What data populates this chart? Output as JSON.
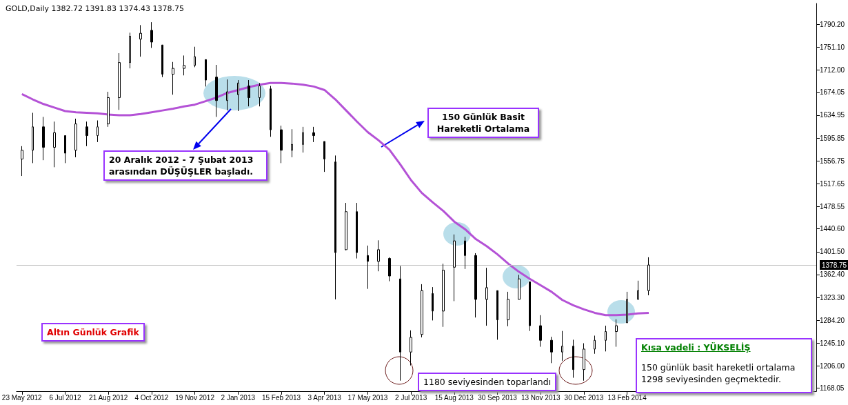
{
  "chart_data": {
    "type": "candlestick",
    "title": "GOLD,Daily  1382.72 1391.83 1374.43 1378.75",
    "color": "#000000",
    "categories": [
      "23 May 2012",
      null,
      null,
      null,
      "6 Jul 2012",
      null,
      null,
      null,
      "21 Aug 2012",
      null,
      null,
      null,
      "4 Oct 2012",
      null,
      null,
      null,
      "19 Nov 2012",
      null,
      null,
      null,
      "2 Jan 2013",
      null,
      null,
      null,
      "15 Feb 2013",
      null,
      null,
      null,
      "3 Apr 2013",
      null,
      null,
      null,
      "17 May 2013",
      null,
      null,
      null,
      "2 Jul 2013",
      null,
      null,
      null,
      "15 Aug 2013",
      null,
      null,
      null,
      "30 Sep 2013",
      null,
      null,
      null,
      "13 Nov 2013",
      null,
      null,
      null,
      "30 Dec 2013",
      null,
      null,
      null,
      "13 Feb 2014",
      null,
      null,
      null,
      null,
      null,
      null,
      null,
      null,
      null,
      null,
      null,
      null,
      null,
      null,
      null,
      null,
      null
    ],
    "ohlc": [
      [
        1560,
        1582,
        1531,
        1575
      ],
      [
        1575,
        1639,
        1553,
        1615
      ],
      [
        1615,
        1632,
        1558,
        1580
      ],
      [
        1580,
        1624,
        1546,
        1605
      ],
      [
        1600,
        1600,
        1553,
        1570
      ],
      [
        1575,
        1629,
        1563,
        1620
      ],
      [
        1615,
        1624,
        1582,
        1600
      ],
      [
        1600,
        1626,
        1589,
        1615
      ],
      [
        1620,
        1675,
        1615,
        1665
      ],
      [
        1665,
        1741,
        1644,
        1725
      ],
      [
        1725,
        1776,
        1715,
        1770
      ],
      [
        1765,
        1789,
        1735,
        1775
      ],
      [
        1780,
        1794,
        1750,
        1760
      ],
      [
        1755,
        1755,
        1700,
        1705
      ],
      [
        1705,
        1726,
        1670,
        1715
      ],
      [
        1715,
        1737,
        1703,
        1720
      ],
      [
        1720,
        1752,
        1717,
        1735
      ],
      [
        1730,
        1730,
        1684,
        1695
      ],
      [
        1700,
        1721,
        1632,
        1660
      ],
      [
        1660,
        1696,
        1643,
        1675
      ],
      [
        1670,
        1695,
        1642,
        1690
      ],
      [
        1685,
        1695,
        1650,
        1665
      ],
      [
        1665,
        1690,
        1650,
        1685
      ],
      [
        1680,
        1685,
        1598,
        1610
      ],
      [
        1610,
        1617,
        1553,
        1575
      ],
      [
        1575,
        1611,
        1563,
        1585
      ],
      [
        1585,
        1615,
        1571,
        1605
      ],
      [
        1605,
        1615,
        1589,
        1600
      ],
      [
        1590,
        1590,
        1538,
        1560
      ],
      [
        1555,
        1566,
        1320,
        1400
      ],
      [
        1405,
        1485,
        1404,
        1470
      ],
      [
        1470,
        1485,
        1390,
        1400
      ],
      [
        1395,
        1412,
        1338,
        1385
      ],
      [
        1385,
        1421,
        1368,
        1405
      ],
      [
        1390,
        1392,
        1351,
        1360
      ],
      [
        1355,
        1377,
        1181,
        1230
      ],
      [
        1230,
        1267,
        1207,
        1255
      ],
      [
        1260,
        1346,
        1255,
        1335
      ],
      [
        1330,
        1341,
        1284,
        1300
      ],
      [
        1300,
        1381,
        1273,
        1370
      ],
      [
        1375,
        1431,
        1317,
        1420
      ],
      [
        1420,
        1427,
        1372,
        1395
      ],
      [
        1395,
        1399,
        1289,
        1320
      ],
      [
        1320,
        1374,
        1275,
        1340
      ],
      [
        1335,
        1335,
        1251,
        1285
      ],
      [
        1285,
        1333,
        1274,
        1320
      ],
      [
        1320,
        1362,
        1320,
        1355
      ],
      [
        1350,
        1350,
        1266,
        1275
      ],
      [
        1275,
        1293,
        1239,
        1250
      ],
      [
        1250,
        1256,
        1211,
        1230
      ],
      [
        1230,
        1266,
        1215,
        1240
      ],
      [
        1240,
        1251,
        1186,
        1200
      ],
      [
        1200,
        1245,
        1181,
        1235
      ],
      [
        1235,
        1258,
        1227,
        1250
      ],
      [
        1250,
        1275,
        1231,
        1265
      ],
      [
        1265,
        1286,
        1239,
        1275
      ],
      [
        1280,
        1333,
        1280,
        1320
      ],
      [
        1320,
        1352,
        1320,
        1335
      ],
      [
        1335,
        1392,
        1327,
        1378.75
      ],
      null,
      null,
      null,
      null,
      null,
      null,
      null,
      null,
      null,
      null,
      null,
      null,
      null,
      null,
      null
    ],
    "series": [
      {
        "type": "line",
        "color": "#b452d6",
        "values": [
          1671,
          1662,
          1654,
          1648,
          1642,
          1640,
          1639,
          1638,
          1636,
          1635,
          1635,
          1637,
          1640,
          1643,
          1646,
          1650,
          1653,
          1659,
          1665,
          1673,
          1678,
          1683,
          1687,
          1690,
          1690,
          1689,
          1687,
          1684,
          1678,
          1662,
          1643,
          1624,
          1606,
          1592,
          1576,
          1551,
          1524,
          1502,
          1486,
          1471,
          1453,
          1440,
          1423,
          1411,
          1397,
          1381,
          1367,
          1355,
          1344,
          1333,
          1319,
          1310,
          1303,
          1297,
          1293,
          1293,
          1294,
          1296,
          1297,
          null,
          null,
          null,
          null,
          null,
          null,
          null,
          null,
          null,
          null,
          null,
          null,
          null,
          null,
          null
        ]
      }
    ],
    "ylim": [
      1163,
      1826
    ],
    "yticks": [
      {
        "value": 1168.05,
        "label": "1168.05"
      },
      {
        "value": 1206,
        "label": "1206.00"
      },
      {
        "value": 1245.1,
        "label": "1245.10"
      },
      {
        "value": 1284.2,
        "label": "1284.20"
      },
      {
        "value": 1323.3,
        "label": "1323.30"
      },
      {
        "value": 1362.4,
        "label": "1362.40"
      },
      {
        "value": 1401.5,
        "label": "1401.50"
      },
      {
        "value": 1440.6,
        "label": "1440.60"
      },
      {
        "value": 1478.55,
        "label": "1478.55"
      },
      {
        "value": 1517.65,
        "label": "1517.65"
      },
      {
        "value": 1556.75,
        "label": "1556.75"
      },
      {
        "value": 1595.85,
        "label": "1595.85"
      },
      {
        "value": 1634.95,
        "label": "1634.95"
      },
      {
        "value": 1674.05,
        "label": "1674.05"
      },
      {
        "value": 1712,
        "label": "1712.00"
      },
      {
        "value": 1751.1,
        "label": "1751.10"
      },
      {
        "value": 1790.2,
        "label": "1790.20"
      }
    ],
    "ref_lines": [
      {
        "axis": "y",
        "value": 1378.75,
        "label": "1378.75",
        "color": "#c0c0c0"
      }
    ],
    "annotations": [
      "20 Aralık 2012 - 7 Şubat 2013 arasından DÜŞÜŞLER başladı.",
      "150 Günlük Basit Hareketli Ortalama",
      "1180 seviyesinden toparlandı",
      "Altın Günlük Grafik",
      "Kısa vadeli : YÜKSELİŞ",
      "150 günlük basit hareketli ortalama 1298 seviyesinden geçmektedir."
    ],
    "grid": false
  }
}
